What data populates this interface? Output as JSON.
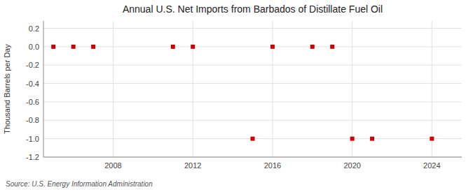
{
  "chart_data": {
    "type": "scatter",
    "title": "Annual U.S. Net Imports from Barbados of Distillate Fuel Oil",
    "ylabel": "Thousand Barrels per Day",
    "x": [
      2005,
      2006,
      2007,
      2011,
      2012,
      2015,
      2016,
      2018,
      2019,
      2020,
      2021,
      2024
    ],
    "values": [
      0,
      0,
      0,
      0,
      0,
      -1,
      0,
      0,
      0,
      -1,
      -1,
      -1
    ],
    "color": "#cc0000",
    "marker": "square",
    "xlim": [
      2004.5,
      2025.5
    ],
    "ylim": [
      -1.2,
      0.28
    ],
    "xticks": [
      2008,
      2012,
      2016,
      2020,
      2024
    ],
    "yticks": [
      0.2,
      {
        "value": 0,
        "label": "0.0"
      },
      -0.2,
      -0.4,
      -0.6,
      -0.8,
      {
        "value": -1,
        "label": "-1.0"
      },
      -1.2
    ],
    "grid": true,
    "annotations": [
      "Source: U.S. Energy Information Administration"
    ]
  }
}
